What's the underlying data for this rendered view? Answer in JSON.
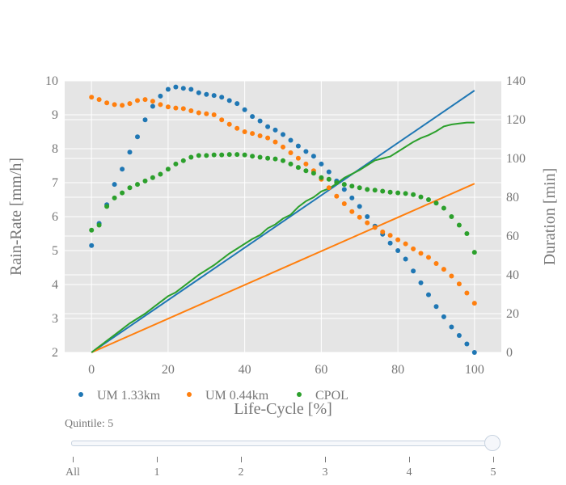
{
  "chart_data": {
    "type": "scatter",
    "xlabel": "Life-Cycle [%]",
    "ylabel": "Rain-Rate [mm/h]",
    "y2label": "Duration [min]",
    "xlim": [
      -7,
      107
    ],
    "ylim": [
      2,
      10
    ],
    "y2lim": [
      0,
      140
    ],
    "xticks": [
      0,
      20,
      40,
      60,
      80,
      100
    ],
    "yticks": [
      2,
      3,
      4,
      5,
      6,
      7,
      8,
      9,
      10
    ],
    "y2ticks": [
      0,
      20,
      40,
      60,
      80,
      100,
      120,
      140
    ],
    "grid": true,
    "legend_position": "bottom",
    "series": [
      {
        "name": "UM 1.33km",
        "color": "#1f77b4",
        "axis": "left",
        "mode": "markers",
        "x": [
          0,
          2,
          4,
          6,
          8,
          10,
          12,
          14,
          16,
          18,
          20,
          22,
          24,
          26,
          28,
          30,
          32,
          34,
          36,
          38,
          40,
          42,
          44,
          46,
          48,
          50,
          52,
          54,
          56,
          58,
          60,
          62,
          64,
          66,
          68,
          70,
          72,
          74,
          76,
          78,
          80,
          82,
          84,
          86,
          88,
          90,
          92,
          94,
          96,
          98,
          100
        ],
        "y": [
          5.15,
          5.8,
          6.35,
          6.95,
          7.4,
          7.9,
          8.35,
          8.85,
          9.25,
          9.55,
          9.75,
          9.82,
          9.78,
          9.75,
          9.65,
          9.6,
          9.57,
          9.52,
          9.42,
          9.33,
          9.15,
          8.95,
          8.82,
          8.65,
          8.55,
          8.42,
          8.25,
          8.08,
          7.92,
          7.78,
          7.55,
          7.32,
          7.05,
          6.8,
          6.55,
          6.3,
          6.0,
          5.72,
          5.48,
          5.22,
          5.0,
          4.75,
          4.4,
          4.05,
          3.7,
          3.35,
          3.05,
          2.75,
          2.5,
          2.25,
          2.0
        ]
      },
      {
        "name": "UM 0.44km",
        "color": "#ff7f0e",
        "axis": "left",
        "mode": "markers",
        "x": [
          0,
          2,
          4,
          6,
          8,
          10,
          12,
          14,
          16,
          18,
          20,
          22,
          24,
          26,
          28,
          30,
          32,
          34,
          36,
          38,
          40,
          42,
          44,
          46,
          48,
          50,
          52,
          54,
          56,
          58,
          60,
          62,
          64,
          66,
          68,
          70,
          72,
          74,
          76,
          78,
          80,
          82,
          84,
          86,
          88,
          90,
          92,
          94,
          96,
          98,
          100
        ],
        "y": [
          9.52,
          9.45,
          9.35,
          9.3,
          9.28,
          9.33,
          9.42,
          9.45,
          9.4,
          9.3,
          9.23,
          9.2,
          9.18,
          9.12,
          9.06,
          9.03,
          9.0,
          8.85,
          8.72,
          8.6,
          8.5,
          8.45,
          8.38,
          8.32,
          8.2,
          8.05,
          7.88,
          7.72,
          7.55,
          7.35,
          7.1,
          6.85,
          6.6,
          6.38,
          6.15,
          5.98,
          5.82,
          5.68,
          5.55,
          5.45,
          5.32,
          5.2,
          5.05,
          4.92,
          4.8,
          4.62,
          4.45,
          4.25,
          4.02,
          3.75,
          3.45
        ]
      },
      {
        "name": "CPOL",
        "color": "#2ca02c",
        "axis": "left",
        "mode": "markers",
        "x": [
          0,
          2,
          4,
          6,
          8,
          10,
          12,
          14,
          16,
          18,
          20,
          22,
          24,
          26,
          28,
          30,
          32,
          34,
          36,
          38,
          40,
          42,
          44,
          46,
          48,
          50,
          52,
          54,
          56,
          58,
          60,
          62,
          64,
          66,
          68,
          70,
          72,
          74,
          76,
          78,
          80,
          82,
          84,
          86,
          88,
          90,
          92,
          94,
          96,
          98,
          100
        ],
        "y": [
          5.6,
          5.75,
          6.3,
          6.55,
          6.7,
          6.85,
          6.95,
          7.05,
          7.15,
          7.25,
          7.4,
          7.55,
          7.65,
          7.75,
          7.8,
          7.8,
          7.82,
          7.82,
          7.83,
          7.83,
          7.82,
          7.78,
          7.75,
          7.72,
          7.7,
          7.65,
          7.55,
          7.45,
          7.35,
          7.28,
          7.15,
          7.1,
          7.0,
          6.95,
          6.9,
          6.85,
          6.8,
          6.78,
          6.75,
          6.72,
          6.7,
          6.68,
          6.65,
          6.58,
          6.5,
          6.4,
          6.25,
          6.0,
          5.75,
          5.5,
          4.95
        ]
      },
      {
        "name": "UM 1.33km duration",
        "color": "#1f77b4",
        "axis": "right",
        "mode": "line",
        "showlegend": false,
        "x": [
          0,
          100
        ],
        "y": [
          0,
          135
        ]
      },
      {
        "name": "UM 0.44km duration",
        "color": "#ff7f0e",
        "axis": "right",
        "mode": "line",
        "showlegend": false,
        "x": [
          0,
          100
        ],
        "y": [
          0,
          87
        ]
      },
      {
        "name": "CPOL duration",
        "color": "#2ca02c",
        "axis": "right",
        "mode": "line",
        "showlegend": false,
        "x": [
          0,
          2,
          4,
          6,
          8,
          10,
          12,
          14,
          16,
          18,
          20,
          22,
          24,
          26,
          28,
          30,
          32,
          34,
          36,
          38,
          40,
          42,
          44,
          46,
          48,
          50,
          52,
          54,
          56,
          58,
          60,
          62,
          64,
          66,
          68,
          70,
          72,
          74,
          76,
          78,
          80,
          82,
          84,
          86,
          88,
          90,
          92,
          94,
          96,
          98,
          100
        ],
        "y": [
          0,
          3,
          6,
          9,
          12,
          15,
          17.5,
          20,
          23,
          26,
          29,
          31,
          34,
          37,
          40,
          42.5,
          45,
          48,
          51,
          53.5,
          56,
          58.5,
          60.5,
          64,
          66,
          69,
          71,
          75,
          78,
          80,
          83,
          84.5,
          87,
          90,
          92,
          94,
          96.5,
          99,
          100,
          101,
          103.5,
          106,
          108.5,
          110.5,
          112,
          114,
          116.5,
          117.5,
          118,
          118.5,
          118.5
        ]
      }
    ]
  },
  "slider": {
    "label": "Quintile: 5",
    "steps": [
      "All",
      "1",
      "2",
      "3",
      "4",
      "5"
    ],
    "active_index": 5
  }
}
